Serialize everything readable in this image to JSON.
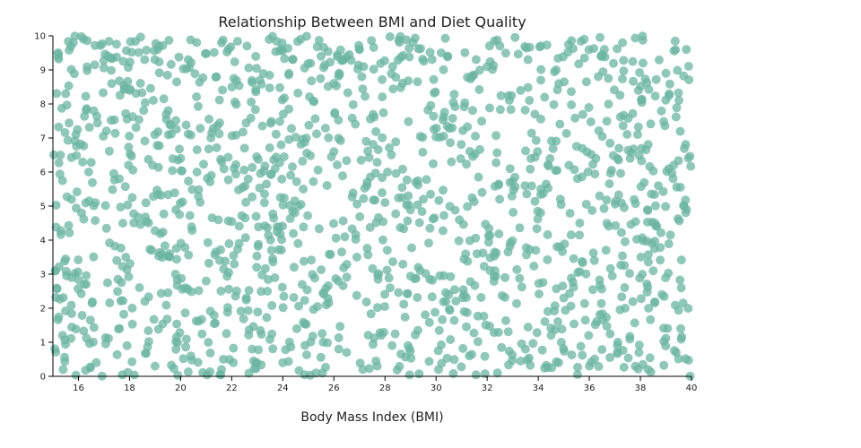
{
  "chart_data": {
    "type": "scatter",
    "title": "Relationship Between BMI and Diet Quality",
    "xlabel": "Body Mass Index (BMI)",
    "ylabel": "",
    "xlim": [
      15,
      40
    ],
    "ylim": [
      0,
      10
    ],
    "xticks": [
      16,
      18,
      20,
      22,
      24,
      26,
      28,
      30,
      32,
      34,
      36,
      38,
      40
    ],
    "yticks": [
      0,
      1,
      2,
      3,
      4,
      5,
      6,
      7,
      8,
      9,
      10
    ],
    "grid": false,
    "legend": "none",
    "marker_color": "#6bb5a0",
    "marker_opacity": 0.75,
    "point_count": 1500,
    "distribution": "uniform",
    "points": [
      [
        15.2,
        9.5
      ],
      [
        15.8,
        9.8
      ],
      [
        16.2,
        9.9
      ],
      [
        15.5,
        8.3
      ],
      [
        15.9,
        7.1
      ],
      [
        16.6,
        7.8
      ],
      [
        17.3,
        8.6
      ],
      [
        18.0,
        8.4
      ],
      [
        19.1,
        9.6
      ],
      [
        20.3,
        9.3
      ],
      [
        21.4,
        8.8
      ],
      [
        22.6,
        9.7
      ],
      [
        23.1,
        8.7
      ],
      [
        24.7,
        9.9
      ],
      [
        25.5,
        9.4
      ],
      [
        26.2,
        8.9
      ],
      [
        27.0,
        9.6
      ],
      [
        28.3,
        9.1
      ],
      [
        29.1,
        9.8
      ],
      [
        30.2,
        9.5
      ],
      [
        31.4,
        8.8
      ],
      [
        32.5,
        9.7
      ],
      [
        33.6,
        9.3
      ],
      [
        34.7,
        9.0
      ],
      [
        35.8,
        9.9
      ],
      [
        36.5,
        9.4
      ],
      [
        37.3,
        9.8
      ],
      [
        38.1,
        9.2
      ],
      [
        39.0,
        8.9
      ],
      [
        39.8,
        9.6
      ],
      [
        15.3,
        6.5
      ],
      [
        16.4,
        6.0
      ],
      [
        17.6,
        5.8
      ],
      [
        18.9,
        6.2
      ],
      [
        20.0,
        6.4
      ],
      [
        21.2,
        5.9
      ],
      [
        22.5,
        6.7
      ],
      [
        23.7,
        6.1
      ],
      [
        24.8,
        5.5
      ],
      [
        26.0,
        6.6
      ],
      [
        27.3,
        5.7
      ],
      [
        28.1,
        6.0
      ],
      [
        29.5,
        5.2
      ],
      [
        30.6,
        6.3
      ],
      [
        31.8,
        5.4
      ],
      [
        32.9,
        6.1
      ],
      [
        34.1,
        5.5
      ],
      [
        35.2,
        6.2
      ],
      [
        36.4,
        5.3
      ],
      [
        37.6,
        6.4
      ],
      [
        38.7,
        5.6
      ],
      [
        39.7,
        5.0
      ],
      [
        15.1,
        3.1
      ],
      [
        16.3,
        2.7
      ],
      [
        17.5,
        3.4
      ],
      [
        18.6,
        2.2
      ],
      [
        19.8,
        3.0
      ],
      [
        21.0,
        2.8
      ],
      [
        22.1,
        3.3
      ],
      [
        23.4,
        2.5
      ],
      [
        24.6,
        3.9
      ],
      [
        25.7,
        2.1
      ],
      [
        26.9,
        3.5
      ],
      [
        28.2,
        2.6
      ],
      [
        29.3,
        3.2
      ],
      [
        30.5,
        2.4
      ],
      [
        31.6,
        3.6
      ],
      [
        32.7,
        2.9
      ],
      [
        33.9,
        3.7
      ],
      [
        35.0,
        2.3
      ],
      [
        36.2,
        3.4
      ],
      [
        37.4,
        2.0
      ],
      [
        38.5,
        3.1
      ],
      [
        39.6,
        2.6
      ],
      [
        15.4,
        0.2
      ],
      [
        16.7,
        0.4
      ],
      [
        17.9,
        0.9
      ],
      [
        19.0,
        0.3
      ],
      [
        20.4,
        0.6
      ],
      [
        21.6,
        0.2
      ],
      [
        22.8,
        0.8
      ],
      [
        24.0,
        0.4
      ],
      [
        25.3,
        0.1
      ],
      [
        26.5,
        0.7
      ],
      [
        27.7,
        0.3
      ],
      [
        28.9,
        0.9
      ],
      [
        30.1,
        0.2
      ],
      [
        31.3,
        0.6
      ],
      [
        32.4,
        0.1
      ],
      [
        33.5,
        0.8
      ],
      [
        34.8,
        0.4
      ],
      [
        36.0,
        0.3
      ],
      [
        37.1,
        0.9
      ],
      [
        38.3,
        0.2
      ],
      [
        39.4,
        0.7
      ]
    ]
  }
}
